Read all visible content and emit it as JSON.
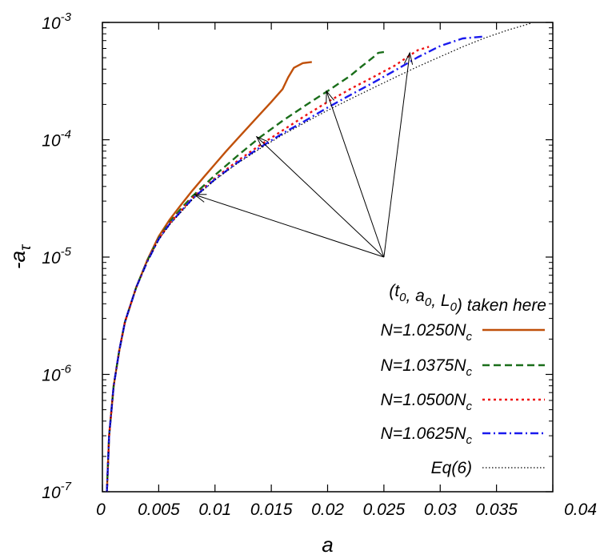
{
  "chart_data": {
    "type": "line",
    "xlabel": "a",
    "ylabel": "-a",
    "ylabel_subscript": "τ",
    "xlim": [
      0,
      0.04
    ],
    "ylim": [
      1e-07,
      0.001
    ],
    "yscale": "log",
    "x_ticks": [
      "0",
      "0.005",
      "0.01",
      "0.015",
      "0.02",
      "0.025",
      "0.03",
      "0.035",
      "0.04"
    ],
    "y_ticks": [
      {
        "base": "10",
        "exp": "-7"
      },
      {
        "base": "10",
        "exp": "-6"
      },
      {
        "base": "10",
        "exp": "-5"
      },
      {
        "base": "10",
        "exp": "-4"
      },
      {
        "base": "10",
        "exp": "-3"
      }
    ],
    "legend_position": "bottom-right",
    "annotation": {
      "text": "(t0, a0, L0) taken here",
      "parts": [
        {
          "t": "(t",
          "sub": false
        },
        {
          "t": "0",
          "sub": true
        },
        {
          "t": ", a",
          "sub": false
        },
        {
          "t": "0",
          "sub": true
        },
        {
          "t": ", L",
          "sub": false
        },
        {
          "t": "0",
          "sub": true
        },
        {
          "t": ") taken here",
          "sub": false
        }
      ],
      "origin": {
        "x": 0.025,
        "y": 1e-05
      },
      "targets": [
        {
          "x": 0.0082,
          "y": 3.4e-05
        },
        {
          "x": 0.0137,
          "y": 0.000106
        },
        {
          "x": 0.0199,
          "y": 0.00026
        },
        {
          "x": 0.0273,
          "y": 0.00055
        }
      ]
    },
    "series": [
      {
        "name": "N=1.0250Nc",
        "label_main": "N=1.0250N",
        "label_sub": "c",
        "color": "#c0500a",
        "style": "solid",
        "points": [
          [
            0.0004,
            1e-07
          ],
          [
            0.0006,
            3e-07
          ],
          [
            0.001,
            8e-07
          ],
          [
            0.0015,
            1.6e-06
          ],
          [
            0.002,
            2.8e-06
          ],
          [
            0.003,
            5.5e-06
          ],
          [
            0.004,
            9.5e-06
          ],
          [
            0.005,
            1.5e-05
          ],
          [
            0.006,
            2.1e-05
          ],
          [
            0.007,
            2.8e-05
          ],
          [
            0.008,
            3.7e-05
          ],
          [
            0.009,
            4.8e-05
          ],
          [
            0.01,
            6.2e-05
          ],
          [
            0.011,
            8e-05
          ],
          [
            0.012,
            0.000102
          ],
          [
            0.013,
            0.00013
          ],
          [
            0.014,
            0.000165
          ],
          [
            0.015,
            0.00021
          ],
          [
            0.016,
            0.00027
          ],
          [
            0.0165,
            0.00034
          ],
          [
            0.017,
            0.00041
          ],
          [
            0.0178,
            0.00045
          ],
          [
            0.0186,
            0.00046
          ]
        ]
      },
      {
        "name": "N=1.0375Nc",
        "label_main": "N=1.0375N",
        "label_sub": "c",
        "color": "#1a6e1a",
        "style": "dashed",
        "points": [
          [
            0.0004,
            1e-07
          ],
          [
            0.0006,
            3e-07
          ],
          [
            0.001,
            8e-07
          ],
          [
            0.0015,
            1.6e-06
          ],
          [
            0.002,
            2.8e-06
          ],
          [
            0.003,
            5.5e-06
          ],
          [
            0.004,
            9.4e-06
          ],
          [
            0.005,
            1.45e-05
          ],
          [
            0.006,
            2e-05
          ],
          [
            0.007,
            2.6e-05
          ],
          [
            0.008,
            3.3e-05
          ],
          [
            0.01,
            5e-05
          ],
          [
            0.012,
            7.3e-05
          ],
          [
            0.014,
            0.000105
          ],
          [
            0.016,
            0.000145
          ],
          [
            0.018,
            0.000195
          ],
          [
            0.02,
            0.00026
          ],
          [
            0.022,
            0.00035
          ],
          [
            0.023,
            0.00042
          ],
          [
            0.024,
            0.0005
          ],
          [
            0.0245,
            0.00055
          ],
          [
            0.025,
            0.00056
          ]
        ]
      },
      {
        "name": "N=1.0500Nc",
        "label_main": "N=1.0500N",
        "label_sub": "c",
        "color": "#ee1111",
        "style": "dotted",
        "points": [
          [
            0.0004,
            1e-07
          ],
          [
            0.0006,
            3e-07
          ],
          [
            0.001,
            8e-07
          ],
          [
            0.0015,
            1.6e-06
          ],
          [
            0.002,
            2.8e-06
          ],
          [
            0.003,
            5.5e-06
          ],
          [
            0.004,
            9.3e-06
          ],
          [
            0.005,
            1.43e-05
          ],
          [
            0.006,
            1.95e-05
          ],
          [
            0.008,
            3.2e-05
          ],
          [
            0.01,
            4.7e-05
          ],
          [
            0.012,
            6.6e-05
          ],
          [
            0.014,
            9e-05
          ],
          [
            0.016,
            0.00012
          ],
          [
            0.018,
            0.00016
          ],
          [
            0.02,
            0.00021
          ],
          [
            0.022,
            0.00027
          ],
          [
            0.024,
            0.00034
          ],
          [
            0.026,
            0.00043
          ],
          [
            0.027,
            0.0005
          ],
          [
            0.028,
            0.00058
          ],
          [
            0.029,
            0.00062
          ]
        ]
      },
      {
        "name": "N=1.0625Nc",
        "label_main": "N=1.0625N",
        "label_sub": "c",
        "color": "#1a1aee",
        "style": "dashdot",
        "points": [
          [
            0.0004,
            1e-07
          ],
          [
            0.0006,
            3e-07
          ],
          [
            0.001,
            8e-07
          ],
          [
            0.0015,
            1.6e-06
          ],
          [
            0.002,
            2.8e-06
          ],
          [
            0.003,
            5.5e-06
          ],
          [
            0.004,
            9.2e-06
          ],
          [
            0.005,
            1.42e-05
          ],
          [
            0.006,
            1.93e-05
          ],
          [
            0.008,
            3.15e-05
          ],
          [
            0.01,
            4.6e-05
          ],
          [
            0.012,
            6.4e-05
          ],
          [
            0.014,
            8.6e-05
          ],
          [
            0.016,
            0.000113
          ],
          [
            0.018,
            0.000145
          ],
          [
            0.02,
            0.000188
          ],
          [
            0.022,
            0.00024
          ],
          [
            0.024,
            0.000305
          ],
          [
            0.026,
            0.00039
          ],
          [
            0.028,
            0.000505
          ],
          [
            0.03,
            0.00063
          ],
          [
            0.032,
            0.00073
          ],
          [
            0.034,
            0.00076
          ]
        ]
      },
      {
        "name": "Eq(6)",
        "label_main": "Eq(6)",
        "label_sub": "",
        "color": "#000000",
        "style": "fine-dotted",
        "points": [
          [
            0.0004,
            1e-07
          ],
          [
            0.0006,
            3e-07
          ],
          [
            0.001,
            8e-07
          ],
          [
            0.0015,
            1.6e-06
          ],
          [
            0.002,
            2.8e-06
          ],
          [
            0.003,
            5.5e-06
          ],
          [
            0.004,
            9.2e-06
          ],
          [
            0.005,
            1.41e-05
          ],
          [
            0.006,
            1.9e-05
          ],
          [
            0.008,
            3.1e-05
          ],
          [
            0.01,
            4.55e-05
          ],
          [
            0.012,
            6.3e-05
          ],
          [
            0.014,
            8.4e-05
          ],
          [
            0.016,
            0.00011
          ],
          [
            0.018,
            0.00014
          ],
          [
            0.02,
            0.000178
          ],
          [
            0.022,
            0.000222
          ],
          [
            0.024,
            0.000275
          ],
          [
            0.026,
            0.00034
          ],
          [
            0.028,
            0.00042
          ],
          [
            0.03,
            0.00051
          ],
          [
            0.032,
            0.00062
          ],
          [
            0.034,
            0.00074
          ],
          [
            0.036,
            0.00086
          ],
          [
            0.038,
            0.00098
          ]
        ]
      }
    ]
  }
}
